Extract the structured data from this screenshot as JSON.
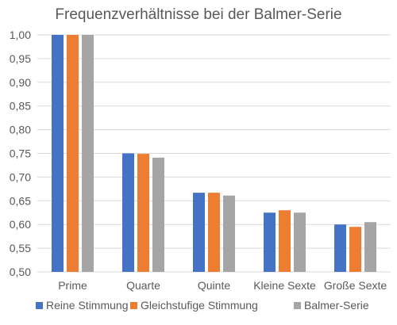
{
  "chart_data": {
    "type": "bar",
    "title": "Frequenzverhältnisse bei der Balmer-Serie",
    "categories": [
      "Prime",
      "Quarte",
      "Quinte",
      "Kleine Sexte",
      "Große Sexte"
    ],
    "series": [
      {
        "name": "Reine Stimmung",
        "color": "#4472C4",
        "values": [
          1.0,
          0.75,
          0.667,
          0.625,
          0.6
        ]
      },
      {
        "name": "Gleichstufige Stimmung",
        "color": "#ED7D31",
        "values": [
          1.0,
          0.749,
          0.667,
          0.63,
          0.595
        ]
      },
      {
        "name": "Balmer-Serie",
        "color": "#A5A5A5",
        "values": [
          1.0,
          0.741,
          0.661,
          0.625,
          0.605
        ]
      }
    ],
    "ylim": [
      0.5,
      1.0
    ],
    "yticks": [
      "0,50",
      "0,55",
      "0,60",
      "0,65",
      "0,70",
      "0,75",
      "0,80",
      "0,85",
      "0,90",
      "0,95",
      "1,00"
    ],
    "grid": true,
    "legend": "bottom"
  }
}
